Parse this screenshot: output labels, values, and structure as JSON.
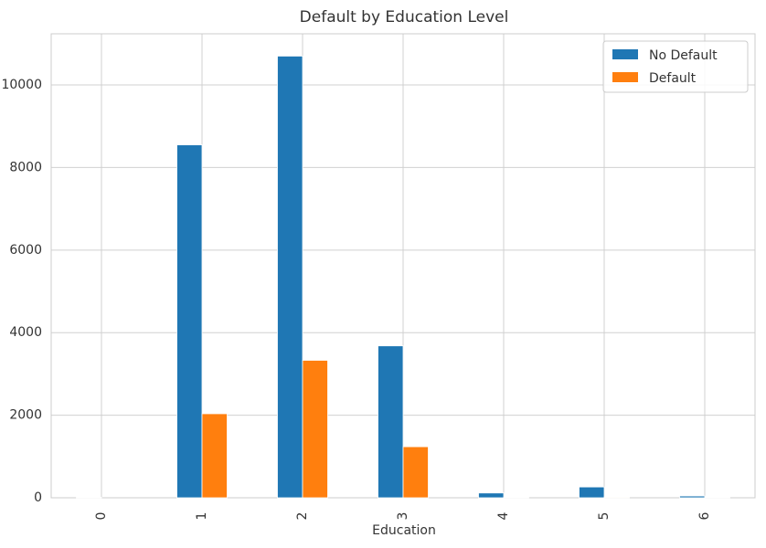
{
  "chart_data": {
    "type": "bar",
    "title": "Default by Education Level",
    "x_label": "Education",
    "categories": [
      "0",
      "1",
      "2",
      "3",
      "4",
      "5",
      "6"
    ],
    "series": [
      {
        "name": "No Default",
        "color": "#1f77b4",
        "values": [
          14,
          8549,
          10700,
          3680,
          116,
          262,
          43
        ]
      },
      {
        "name": "Default",
        "color": "#ff7f0e",
        "values": [
          0,
          2036,
          3330,
          1237,
          7,
          18,
          8
        ]
      }
    ],
    "ylim": [
      0,
      11240
    ],
    "yticks": [
      0,
      2000,
      4000,
      6000,
      8000,
      10000
    ],
    "grid": true,
    "legend": "upper right"
  }
}
